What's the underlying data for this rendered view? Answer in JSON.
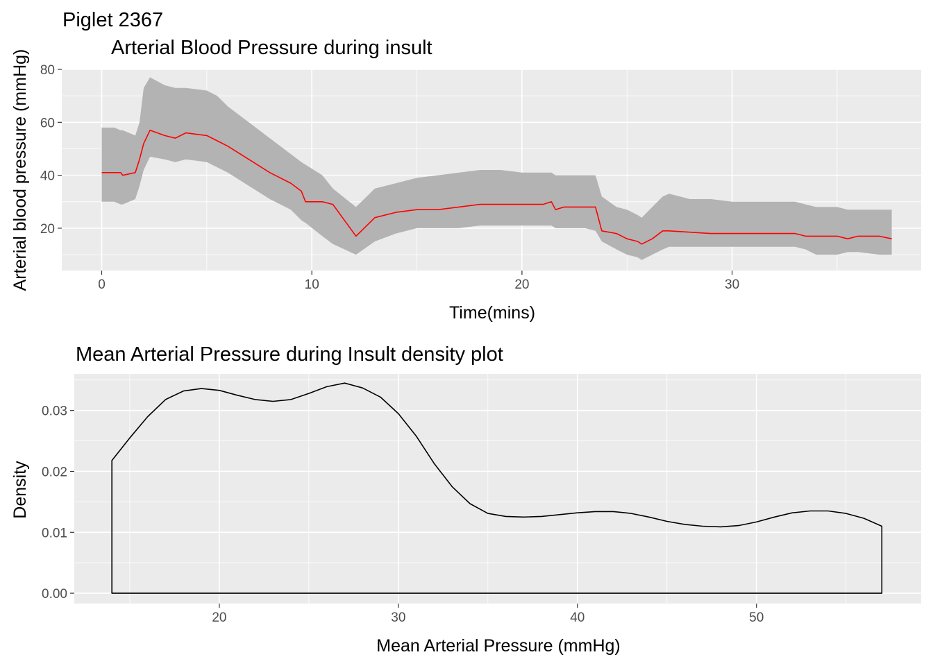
{
  "figure_title": "Piglet 2367",
  "colors": {
    "panel_bg": "#ebebeb",
    "grid": "#ffffff",
    "ribbon": "#b3b3b3",
    "line_mean": "#ff0000",
    "density_line": "#000000",
    "tick_text": "#4d4d4d",
    "tick_mark": "#333333"
  },
  "chart_data": [
    {
      "type": "line",
      "title": "Arterial Blood Pressure during insult",
      "xlabel": "Time(mins)",
      "ylabel": "Arterial blood pressure (mmHg)",
      "xlim": [
        -1.9,
        39.0
      ],
      "ylim": [
        4,
        80
      ],
      "xticks": [
        0,
        10,
        20,
        30
      ],
      "yticks": [
        20,
        40,
        60,
        80
      ],
      "grid": true,
      "series": [
        {
          "kind": "line",
          "x": [
            0,
            0.6,
            0.9,
            1.0,
            1.6,
            1.8,
            2.0,
            2.3,
            3.0,
            3.5,
            4.0,
            5.0,
            5.5,
            6.0,
            7.0,
            8.0,
            9.0,
            9.5,
            9.7,
            10.5,
            11.0,
            12.1,
            13.0,
            14.0,
            15.0,
            16.0,
            17.0,
            18.0,
            19.0,
            20.0,
            21.0,
            21.4,
            21.6,
            22.0,
            23.0,
            23.5,
            23.8,
            24.5,
            25.0,
            25.5,
            25.7,
            26.2,
            26.7,
            27.0,
            28.0,
            29.0,
            30.0,
            31.0,
            32.0,
            33.0,
            33.5,
            34.0,
            35.0,
            35.5,
            36.0,
            37.0,
            37.6
          ],
          "y": [
            41,
            41,
            41,
            40,
            41,
            46,
            52,
            57,
            55,
            54,
            56,
            55,
            53,
            51,
            46,
            41,
            37,
            34,
            30,
            30,
            29,
            17,
            24,
            26,
            27,
            27,
            28,
            29,
            29,
            29,
            29,
            30,
            27,
            28,
            28,
            28,
            19,
            18,
            16,
            15,
            14,
            16,
            19,
            19,
            18.5,
            18,
            18,
            18,
            18,
            18,
            17,
            17,
            17,
            16,
            17,
            17,
            16
          ]
        },
        {
          "kind": "ribbon",
          "x": [
            0,
            0.6,
            0.9,
            1.0,
            1.6,
            1.8,
            2.0,
            2.3,
            3.0,
            3.5,
            4.0,
            5.0,
            5.5,
            6.0,
            7.0,
            8.0,
            9.0,
            9.5,
            9.7,
            10.5,
            11.0,
            12.1,
            13.0,
            14.0,
            15.0,
            16.0,
            17.0,
            18.0,
            19.0,
            20.0,
            21.0,
            21.4,
            21.6,
            22.0,
            23.0,
            23.5,
            23.8,
            24.5,
            25.0,
            25.5,
            25.7,
            26.2,
            26.7,
            27.0,
            28.0,
            29.0,
            30.0,
            31.0,
            32.0,
            33.0,
            33.5,
            34.0,
            35.0,
            35.5,
            36.0,
            37.0,
            37.6
          ],
          "ymin": [
            30,
            30,
            29,
            29,
            31,
            36,
            42,
            47,
            46,
            45,
            46,
            45,
            43,
            41,
            36,
            31,
            27,
            23,
            22,
            17,
            14,
            10,
            15,
            18,
            20,
            20,
            20,
            21,
            21,
            21,
            21,
            21,
            20,
            20,
            20,
            19,
            15,
            12,
            10,
            9,
            8,
            10,
            12,
            13,
            13,
            13,
            13,
            13,
            13,
            13,
            12,
            10,
            10,
            11,
            11,
            10,
            10
          ],
          "ymax": [
            58,
            58,
            57,
            57,
            55,
            60,
            73,
            77,
            74,
            73,
            73,
            72,
            70,
            66,
            60,
            54,
            48,
            45,
            44,
            40,
            35,
            28,
            35,
            37,
            39,
            40,
            41,
            42,
            42,
            41,
            41,
            41,
            40,
            40,
            40,
            40,
            32,
            28,
            27,
            25,
            24,
            28,
            32,
            33,
            31,
            31,
            30,
            30,
            30,
            30,
            29,
            28,
            28,
            27,
            27,
            27,
            27
          ]
        }
      ]
    },
    {
      "type": "area",
      "title": "Mean Arterial Pressure during Insult density plot",
      "xlabel": "Mean Arterial Pressure (mmHg)",
      "ylabel": "Density",
      "xlim": [
        11.9,
        59.2
      ],
      "ylim": [
        -0.0017,
        0.036
      ],
      "xticks": [
        20,
        30,
        40,
        50
      ],
      "yticks": [
        0.0,
        0.01,
        0.02,
        0.03
      ],
      "ytick_labels": [
        "0.00",
        "0.01",
        "0.02",
        "0.03"
      ],
      "grid": true,
      "x": [
        14.0,
        15.0,
        16.0,
        17.0,
        18.0,
        19.0,
        20.0,
        21.0,
        22.0,
        23.0,
        24.0,
        25.0,
        26.0,
        27.0,
        28.0,
        29.0,
        30.0,
        31.0,
        32.0,
        33.0,
        34.0,
        35.0,
        36.0,
        37.0,
        38.0,
        39.0,
        40.0,
        41.0,
        42.0,
        43.0,
        44.0,
        45.0,
        46.0,
        47.0,
        48.0,
        49.0,
        50.0,
        51.0,
        52.0,
        53.0,
        54.0,
        55.0,
        56.0,
        57.0
      ],
      "y": [
        0.0218,
        0.0255,
        0.029,
        0.0318,
        0.0332,
        0.0336,
        0.0333,
        0.0325,
        0.0318,
        0.0315,
        0.0318,
        0.0328,
        0.0339,
        0.0345,
        0.0337,
        0.0322,
        0.0295,
        0.0258,
        0.0213,
        0.0175,
        0.0147,
        0.0131,
        0.0126,
        0.0125,
        0.0126,
        0.0129,
        0.0132,
        0.0134,
        0.0134,
        0.0131,
        0.0125,
        0.0118,
        0.0113,
        0.011,
        0.0109,
        0.0111,
        0.0117,
        0.0125,
        0.0132,
        0.0135,
        0.0135,
        0.0131,
        0.0123,
        0.011
      ]
    }
  ]
}
